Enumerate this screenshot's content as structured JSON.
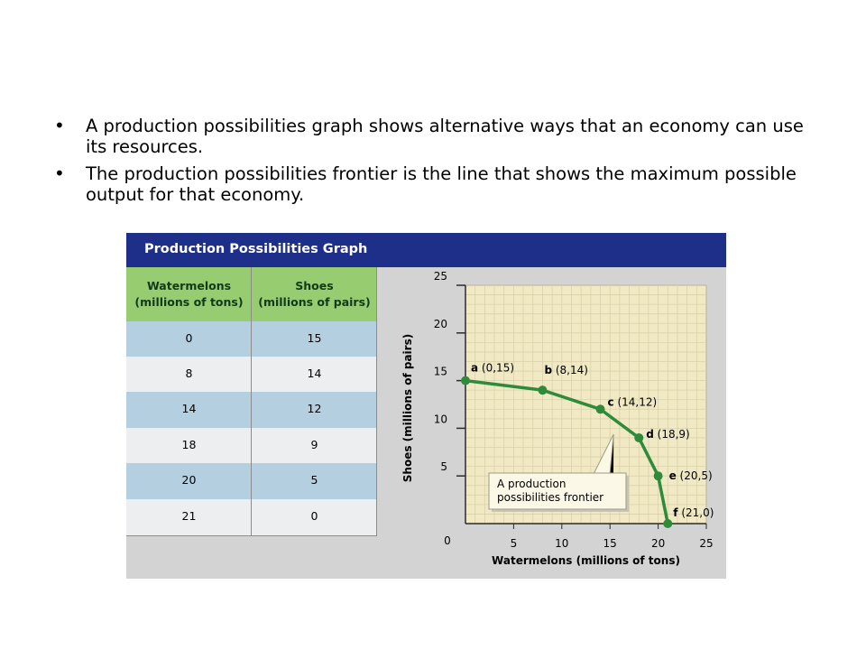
{
  "bullets": [
    "A production possibilities graph shows alternative ways that an economy can use its resources.",
    "The production possibilities frontier is the line that shows the maximum possible output for that economy."
  ],
  "bullet_char": "•",
  "panel": {
    "title": "Production Possibilities Graph",
    "header_color": "#1e2f8a"
  },
  "table": {
    "col1_header_line1": "Watermelons",
    "col1_header_line2": "(millions of tons)",
    "col2_header_line1": "Shoes",
    "col2_header_line2": "(millions of pairs)",
    "rows": [
      {
        "watermelons": "0",
        "shoes": "15"
      },
      {
        "watermelons": "8",
        "shoes": "14"
      },
      {
        "watermelons": "14",
        "shoes": "12"
      },
      {
        "watermelons": "18",
        "shoes": "9"
      },
      {
        "watermelons": "20",
        "shoes": "5"
      },
      {
        "watermelons": "21",
        "shoes": "0"
      }
    ],
    "header_color": "#97cc71",
    "row_colors": [
      "#b3cfe0",
      "#eceef0"
    ]
  },
  "chart_data": {
    "type": "line",
    "xlabel": "Watermelons (millions of tons)",
    "ylabel": "Shoes (millions of pairs)",
    "xlim": [
      0,
      25
    ],
    "ylim": [
      0,
      25
    ],
    "x_ticks": [
      5,
      10,
      15,
      20,
      25
    ],
    "y_ticks": [
      5,
      10,
      15,
      20,
      25
    ],
    "origin_label": "0",
    "points": [
      {
        "letter": "a",
        "coord": "(0,15)",
        "x": 0,
        "y": 15
      },
      {
        "letter": "b",
        "coord": "(8,14)",
        "x": 8,
        "y": 14
      },
      {
        "letter": "c",
        "coord": "(14,12)",
        "x": 14,
        "y": 12
      },
      {
        "letter": "d",
        "coord": "(18,9)",
        "x": 18,
        "y": 9
      },
      {
        "letter": "e",
        "coord": "(20,5)",
        "x": 20,
        "y": 5
      },
      {
        "letter": "f",
        "coord": "(21,0)",
        "x": 21,
        "y": 0
      }
    ],
    "callout_line1": "A production",
    "callout_line2": "possibilities frontier",
    "plot_bg": "#f0e9c4",
    "line_color": "#2e8b3c"
  }
}
